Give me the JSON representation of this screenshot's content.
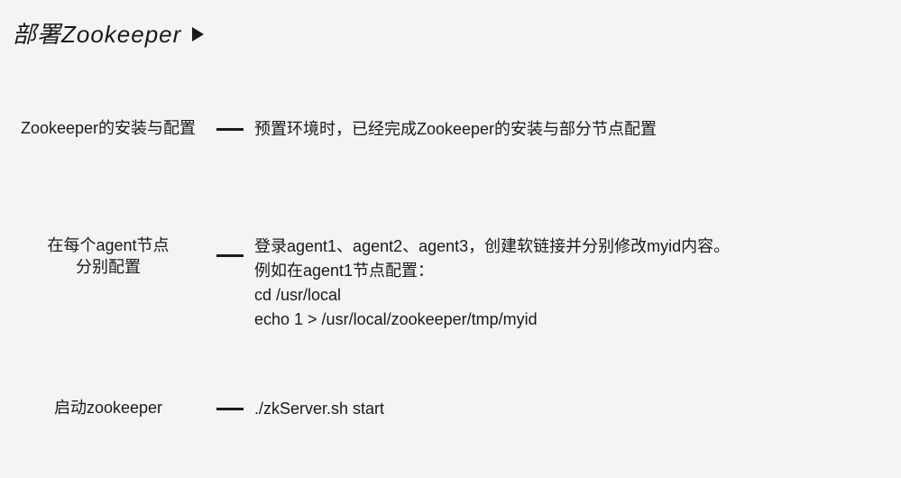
{
  "title": "部署Zookeeper",
  "sections": {
    "s1": {
      "label": "Zookeeper的安装与配置",
      "content": "预置环境时，已经完成Zookeeper的安装与部分节点配置"
    },
    "s2": {
      "label_line1": "在每个agent节点",
      "label_line2": "分别配置",
      "line1": "登录agent1、agent2、agent3，创建软链接并分别修改myid内容。",
      "line2": "例如在agent1节点配置：",
      "line3": "cd /usr/local",
      "line4": "echo 1 > /usr/local/zookeeper/tmp/myid"
    },
    "s3": {
      "label": "启动zookeeper",
      "content": "./zkServer.sh start"
    }
  },
  "colors": {
    "text": "#1a1a1a",
    "background": "#f4f4f4"
  },
  "typography": {
    "title_fontsize": 26,
    "body_fontsize": 18,
    "title_style": "italic"
  }
}
